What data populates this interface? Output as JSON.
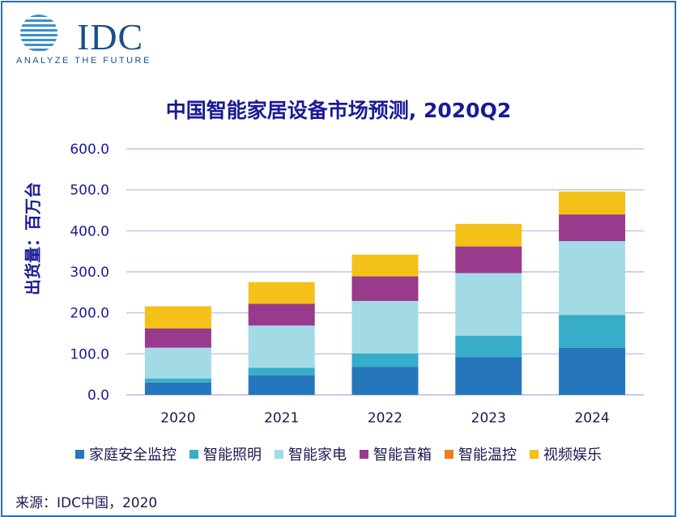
{
  "brand": {
    "name": "IDC",
    "tagline": "ANALYZE THE FUTURE",
    "color": "#1a4f8a"
  },
  "source": "来源：IDC中国，2020",
  "chart_data": {
    "type": "bar",
    "stacked": true,
    "title": "中国智能家居设备市场预测, 2020Q2",
    "xlabel": "",
    "ylabel": "出货量：百万台",
    "ylim": [
      0,
      600
    ],
    "yticks": [
      "0.0",
      "100.0",
      "200.0",
      "300.0",
      "400.0",
      "500.0",
      "600.0"
    ],
    "categories": [
      "2020",
      "2021",
      "2022",
      "2023",
      "2024"
    ],
    "grid": true,
    "legend_position": "bottom",
    "series": [
      {
        "name": "家庭安全监控",
        "color": "#2676bb",
        "values": [
          30,
          48,
          68,
          92,
          115
        ]
      },
      {
        "name": "智能照明",
        "color": "#37adc9",
        "values": [
          10,
          18,
          33,
          52,
          80
        ]
      },
      {
        "name": "智能家电",
        "color": "#a2dbe6",
        "values": [
          75,
          103,
          128,
          153,
          180
        ]
      },
      {
        "name": "智能音箱",
        "color": "#9a3a8c",
        "values": [
          47,
          53,
          60,
          65,
          65
        ]
      },
      {
        "name": "智能温控",
        "color": "#ee7d23",
        "values": [
          0,
          0,
          0,
          0,
          0
        ]
      },
      {
        "name": "视频娱乐",
        "color": "#f4c119",
        "values": [
          54,
          53,
          53,
          55,
          56
        ]
      }
    ]
  }
}
